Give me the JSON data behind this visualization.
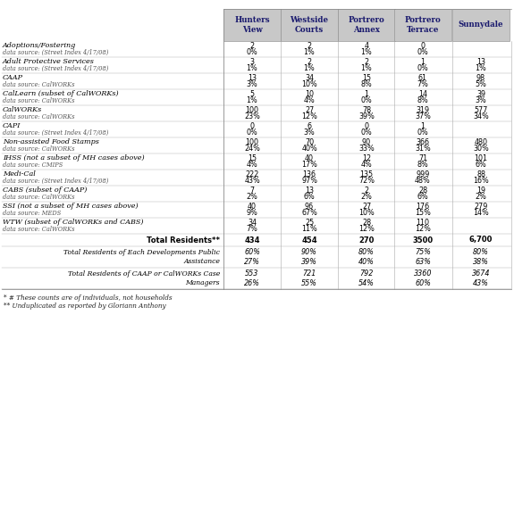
{
  "columns": [
    "Hunters\nView",
    "Westside\nCourts",
    "Portrero\nAnnex",
    "Portrero\nTerrace",
    "Sunnydale"
  ],
  "rows": [
    [
      "Adoptions/Fostering",
      "data source: (Street Index 4/17/08)",
      "2",
      "0%",
      "2",
      "1%",
      "4",
      "1%",
      "0",
      "0%",
      "",
      ""
    ],
    [
      "Adult Protective Services",
      "data source: (Street Index 4/17/08)",
      "3",
      "1%",
      "2",
      "1%",
      "2",
      "1%",
      "1",
      "0%",
      "13",
      "1%"
    ],
    [
      "CAAP",
      "data source: CalWORKs",
      "13",
      "3%",
      "34",
      "10%",
      "15",
      "8%",
      "61",
      "7%",
      "98",
      "5%"
    ],
    [
      "CalLearn (subset of CalWORKs)",
      "data source: CalWORKs",
      "5",
      "1%",
      "10",
      "4%",
      "1",
      "0%",
      "14",
      "8%",
      "39",
      "3%"
    ],
    [
      "CalWORKs",
      "data source: CalWORKs",
      "100",
      "23%",
      "27",
      "12%",
      "78",
      "39%",
      "319",
      "37%",
      "577",
      "34%"
    ],
    [
      "CAPI",
      "data source: (Street Index 4/17/08)",
      "0",
      "0%",
      "6",
      "3%",
      "0",
      "0%",
      "1",
      "0%",
      "",
      ""
    ],
    [
      "Non-assisted Food Stamps",
      "data source: CalWORKs",
      "100",
      "24%",
      "70",
      "40%",
      "90",
      "33%",
      "366",
      "31%",
      "480",
      "30%"
    ],
    [
      "IHSS (not a subset of MH cases above)",
      "data source: CMIPS",
      "15",
      "4%",
      "40",
      "17%",
      "12",
      "4%",
      "71",
      "8%",
      "101",
      "6%"
    ],
    [
      "Medi-Cal",
      "data source: (Street Index 4/17/08)",
      "222",
      "43%",
      "136",
      "97%",
      "135",
      "72%",
      "999",
      "48%",
      "88",
      "16%"
    ],
    [
      "CABS (subset of CAAP)",
      "data source: CalWORKs",
      "7",
      "2%",
      "13",
      "6%",
      "2",
      "2%",
      "28",
      "6%",
      "19",
      "2%"
    ],
    [
      "SSI (not a subset of MH cases above)",
      "data source: MEDS",
      "40",
      "9%",
      "96",
      "67%",
      "27",
      "10%",
      "176",
      "15%",
      "279",
      "14%"
    ],
    [
      "WTW (subset of CalWORKs and CABS)",
      "data source: CalWORKs",
      "34",
      "7%",
      "25",
      "11%",
      "28",
      "12%",
      "110",
      "12%",
      "",
      ""
    ]
  ],
  "total_row": [
    "Total Residents**",
    "434",
    "454",
    "270",
    "3500",
    "6,700"
  ],
  "assist_row_label": "Total Residents of Each Developments Public\nAssistance",
  "assist_row_vals": [
    "60%",
    "90%",
    "80%",
    "75%",
    "80%"
  ],
  "assist_row_pcts": [
    "27%",
    "39%",
    "40%",
    "63%",
    "38%"
  ],
  "case_row_label": "Total Residents of CAAP or CalWORKs Case\nManagers",
  "case_row_vals": [
    "553",
    "721",
    "792",
    "3360",
    "3674"
  ],
  "case_row_pcts": [
    "26%",
    "55%",
    "54%",
    "60%",
    "43%"
  ],
  "footnotes": [
    "* # These counts are of individuals, not households",
    "** Unduplicated as reported by Gloriann Anthony"
  ],
  "header_bg": "#c8c8c8",
  "col_header_color": "#1a1a6e",
  "row_bg_even": "#ffffff",
  "row_bg_odd": "#ffffff",
  "program_text_color": "#000000",
  "source_text_color": "#555555",
  "value_color": "#000000",
  "bold_color": "#000000",
  "fig_w": 5.75,
  "fig_h": 5.76,
  "dpi": 100
}
